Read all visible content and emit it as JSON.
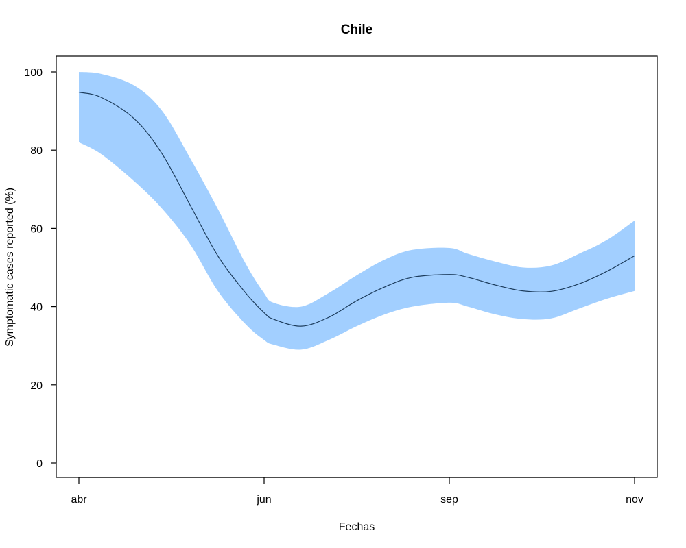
{
  "chart_data": {
    "type": "line",
    "title": "Chile",
    "xlabel": "Fechas",
    "ylabel": "Symptomatic cases reported (%)",
    "x_tick_labels": [
      "abr",
      "jun",
      "sep",
      "nov"
    ],
    "y_ticks": [
      0,
      20,
      40,
      60,
      80,
      100
    ],
    "x": [
      0.0,
      0.04,
      0.1,
      0.15,
      0.2,
      0.25,
      0.3,
      0.333,
      0.35,
      0.4,
      0.45,
      0.5,
      0.55,
      0.6,
      0.667,
      0.7,
      0.75,
      0.8,
      0.85,
      0.9,
      0.95,
      1.0
    ],
    "series": [
      {
        "role": "fit",
        "color": "#1c3c5c",
        "values": [
          94.8,
          93.5,
          88.0,
          79.0,
          66.0,
          53.0,
          43.5,
          38.5,
          36.8,
          35.0,
          37.3,
          41.5,
          45.0,
          47.5,
          48.2,
          47.5,
          45.5,
          44.0,
          43.9,
          45.8,
          49.0,
          53.0
        ]
      },
      {
        "role": "band-upper",
        "color": "#a2cfff",
        "values": [
          100.0,
          99.5,
          96.5,
          90.0,
          78.0,
          65.0,
          51.0,
          43.5,
          41.0,
          40.0,
          43.5,
          48.0,
          52.0,
          54.5,
          55.0,
          53.5,
          51.5,
          50.0,
          50.5,
          53.5,
          57.0,
          62.0
        ]
      },
      {
        "role": "band-lower",
        "color": "#a2cfff",
        "values": [
          82.0,
          79.0,
          72.0,
          65.0,
          56.0,
          44.0,
          35.5,
          31.5,
          30.3,
          29.0,
          31.5,
          35.0,
          38.0,
          40.0,
          41.0,
          40.0,
          38.0,
          36.8,
          37.0,
          39.5,
          42.0,
          44.0
        ]
      }
    ],
    "xlim": [
      0,
      1
    ],
    "ylim": [
      0,
      100
    ],
    "grid": false,
    "legend": "none"
  }
}
